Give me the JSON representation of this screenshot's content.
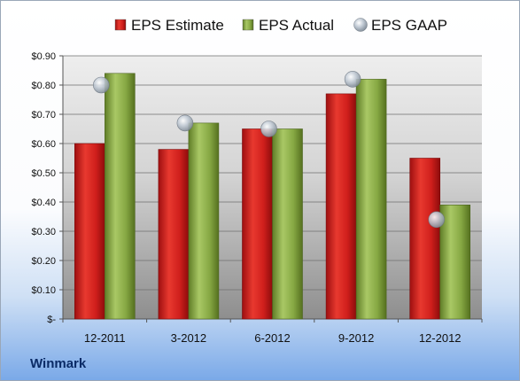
{
  "company": "Winmark",
  "colors": {
    "estimate": "#d42020",
    "actual": "#8fb04a",
    "gaap": "#a8b4c0"
  },
  "chart_data": {
    "type": "bar",
    "categories": [
      "12-2011",
      "3-2012",
      "6-2012",
      "9-2012",
      "12-2012"
    ],
    "series": [
      {
        "name": "EPS Estimate",
        "kind": "bar",
        "values": [
          0.6,
          0.58,
          0.65,
          0.77,
          0.55
        ]
      },
      {
        "name": "EPS Actual",
        "kind": "bar",
        "values": [
          0.84,
          0.67,
          0.65,
          0.82,
          0.39
        ]
      },
      {
        "name": "EPS GAAP",
        "kind": "marker",
        "values": [
          0.8,
          0.67,
          0.65,
          0.82,
          0.34
        ]
      }
    ],
    "ylim": [
      0,
      0.9
    ],
    "yticks": [
      0,
      0.1,
      0.2,
      0.3,
      0.4,
      0.5,
      0.6,
      0.7,
      0.8,
      0.9
    ],
    "ytick_labels": [
      "$-",
      "$0.10",
      "$0.20",
      "$0.30",
      "$0.40",
      "$0.50",
      "$0.60",
      "$0.70",
      "$0.80",
      "$0.90"
    ],
    "grid": true,
    "legend_position": "top"
  }
}
